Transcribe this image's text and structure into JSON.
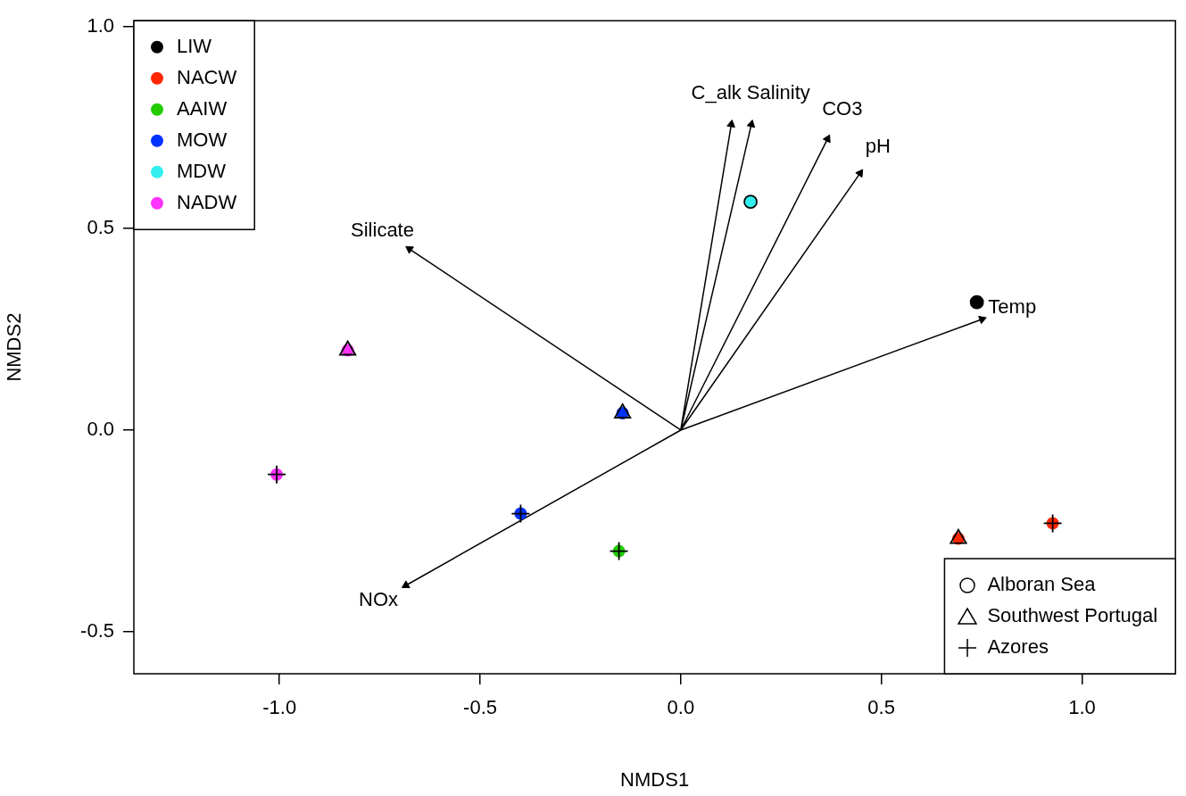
{
  "chart_data": {
    "type": "scatter",
    "xlabel": "NMDS1",
    "ylabel": "NMDS2",
    "xlim": [
      -1.363,
      1.233
    ],
    "ylim": [
      -0.604,
      1.015
    ],
    "xticks": [
      {
        "value": -1,
        "label": "-1.0"
      },
      {
        "value": -0.5,
        "label": "-0.5"
      },
      {
        "value": 0,
        "label": "0.0"
      },
      {
        "value": 0.5,
        "label": "0.5"
      },
      {
        "value": 1,
        "label": "1.0"
      }
    ],
    "yticks": [
      {
        "value": -0.5,
        "label": "-0.5"
      },
      {
        "value": 0,
        "label": "0.0"
      },
      {
        "value": 0.5,
        "label": "0.5"
      },
      {
        "value": 1,
        "label": "1.0"
      }
    ],
    "legend": "top left",
    "annotations": [
      "Silicate",
      "NOx",
      "Temp",
      "pH",
      "CO3",
      "Salinity",
      "C_alk",
      "Alboran Sea",
      "Southwest Portugal",
      "Azores"
    ],
    "series": [
      {
        "name": "LIW",
        "color": "#000000",
        "marker": "circle",
        "x": [
          0.738
        ],
        "values": [
          0.317
        ]
      },
      {
        "name": "NACW",
        "color": "#ff2600",
        "marker": "circle",
        "x": [
          0.692,
          0.927
        ],
        "values": [
          -0.269,
          -0.231
        ]
      },
      {
        "name": "AAIW",
        "color": "#22cc00",
        "marker": "circle",
        "x": [
          -0.154
        ],
        "values": [
          -0.3
        ]
      },
      {
        "name": "MOW",
        "color": "#0033ff",
        "marker": "circle",
        "x": [
          -0.145,
          -0.399
        ],
        "values": [
          0.042,
          -0.207
        ]
      },
      {
        "name": "MDW",
        "color": "#33eeee",
        "marker": "circle",
        "x": [
          0.174
        ],
        "values": [
          0.566
        ]
      },
      {
        "name": "NADW",
        "color": "#ff33ff",
        "marker": "circle",
        "x": [
          -0.83,
          -1.007
        ],
        "values": [
          0.198,
          -0.11
        ]
      },
      {
        "color": "#000000",
        "marker": "circle",
        "x": [
          0.738,
          0.174
        ],
        "values": [
          0.317,
          0.566
        ]
      },
      {
        "color": "#000000",
        "marker": "triangle",
        "x": [
          -0.83,
          -0.145,
          0.692
        ],
        "values": [
          0.198,
          0.042,
          -0.269
        ]
      },
      {
        "color": "#000000",
        "marker": "cross",
        "x": [
          -1.007,
          -0.399,
          -0.154,
          0.927
        ],
        "values": [
          -0.11,
          -0.207,
          -0.3,
          -0.231
        ]
      },
      {
        "type": "line",
        "color": "#000000",
        "x": [
          0,
          -0.676,
          null,
          0,
          -0.685,
          null,
          0,
          0.751,
          null,
          0,
          0.447,
          null,
          0,
          0.366,
          null,
          0,
          0.176,
          null,
          0,
          0.126
        ],
        "values": [
          0,
          0.449,
          null,
          0,
          -0.385,
          null,
          0,
          0.275,
          null,
          0,
          0.637,
          null,
          0,
          0.722,
          null,
          0,
          0.758,
          null,
          0,
          0.758
        ]
      }
    ]
  }
}
